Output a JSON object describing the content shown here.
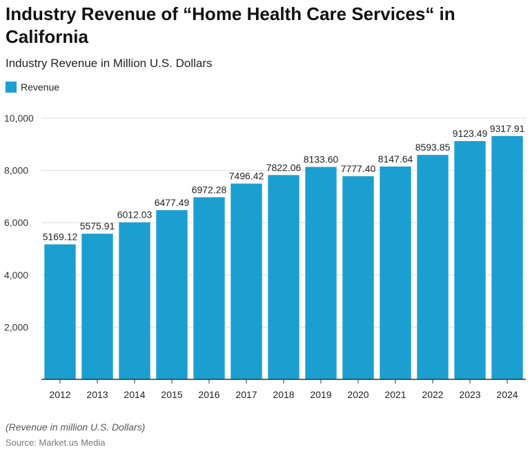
{
  "chart_data": {
    "type": "bar",
    "title": "Industry Revenue of “Home Health Care Services“ in California",
    "subtitle": "Industry Revenue in Million U.S. Dollars",
    "legend": {
      "position": "top-left",
      "entries": [
        "Revenue"
      ]
    },
    "categories": [
      "2012",
      "2013",
      "2014",
      "2015",
      "2016",
      "2017",
      "2018",
      "2019",
      "2020",
      "2021",
      "2022",
      "2023",
      "2024"
    ],
    "series": [
      {
        "name": "Revenue",
        "color": "#1a9fd0",
        "values": [
          5169.12,
          5575.91,
          6012.03,
          6477.49,
          6972.28,
          7496.42,
          7822.06,
          8133.6,
          7777.4,
          8147.64,
          8593.85,
          9123.49,
          9317.91
        ],
        "value_labels": [
          "5169.12",
          "5575.91",
          "6012.03",
          "6477.49",
          "6972.28",
          "7496.42",
          "7822.06",
          "8133.60",
          "7777.40",
          "8147.64",
          "8593.85",
          "9123.49",
          "9317.91"
        ]
      }
    ],
    "ylim": [
      0,
      10000
    ],
    "yticks": [
      2000,
      4000,
      6000,
      8000,
      10000
    ],
    "ytick_labels": [
      "2,000",
      "4,000",
      "6,000",
      "8,000",
      "10,000"
    ],
    "grid": true
  },
  "footer": {
    "note": "(Revenue in million U.S. Dollars)",
    "source": "Source: Market.us Media"
  }
}
